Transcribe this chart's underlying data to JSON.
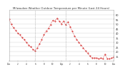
{
  "title": "Milwaukee Weather Outdoor Temperature per Minute (Last 24 Hours)",
  "background_color": "#ffffff",
  "plot_bg_color": "#ffffff",
  "line_color": "#cc0000",
  "grid_color": "#cccccc",
  "ylim": [
    10,
    65
  ],
  "xlim": [
    0,
    1440
  ],
  "vlines": [
    360,
    780
  ],
  "vline_color": "#888888",
  "yticks": [
    15,
    20,
    25,
    30,
    35,
    40,
    45,
    50,
    55,
    60
  ],
  "ytick_labels": [
    "15",
    "20",
    "25",
    "30",
    "35",
    "40",
    "45",
    "50",
    "55",
    "60"
  ],
  "xtick_positions": [
    0,
    120,
    240,
    360,
    480,
    600,
    720,
    840,
    960,
    1080,
    1200,
    1320,
    1440
  ],
  "xtick_labels": [
    "12a",
    "2",
    "4",
    "6",
    "8",
    "10",
    "12p",
    "2",
    "4",
    "6",
    "8",
    "10",
    "12a"
  ],
  "curve": [
    [
      0,
      55
    ],
    [
      30,
      50
    ],
    [
      60,
      46
    ],
    [
      90,
      43
    ],
    [
      120,
      40
    ],
    [
      150,
      38
    ],
    [
      180,
      35
    ],
    [
      210,
      33
    ],
    [
      240,
      30
    ],
    [
      270,
      27
    ],
    [
      300,
      25
    ],
    [
      330,
      22
    ],
    [
      360,
      21
    ],
    [
      390,
      24
    ],
    [
      420,
      28
    ],
    [
      450,
      33
    ],
    [
      480,
      38
    ],
    [
      510,
      42
    ],
    [
      540,
      45
    ],
    [
      570,
      49
    ],
    [
      600,
      54
    ],
    [
      630,
      53
    ],
    [
      660,
      56
    ],
    [
      690,
      53
    ],
    [
      720,
      50
    ],
    [
      750,
      53
    ],
    [
      780,
      49
    ],
    [
      810,
      52
    ],
    [
      840,
      47
    ],
    [
      870,
      42
    ],
    [
      900,
      37
    ],
    [
      930,
      33
    ],
    [
      960,
      30
    ],
    [
      990,
      27
    ],
    [
      1020,
      24
    ],
    [
      1050,
      21
    ],
    [
      1080,
      18
    ],
    [
      1110,
      15
    ],
    [
      1140,
      13
    ],
    [
      1170,
      13
    ],
    [
      1200,
      13
    ],
    [
      1230,
      12
    ],
    [
      1260,
      13
    ],
    [
      1290,
      12
    ],
    [
      1320,
      17
    ],
    [
      1350,
      12
    ],
    [
      1380,
      12
    ],
    [
      1410,
      13
    ],
    [
      1440,
      14
    ]
  ]
}
